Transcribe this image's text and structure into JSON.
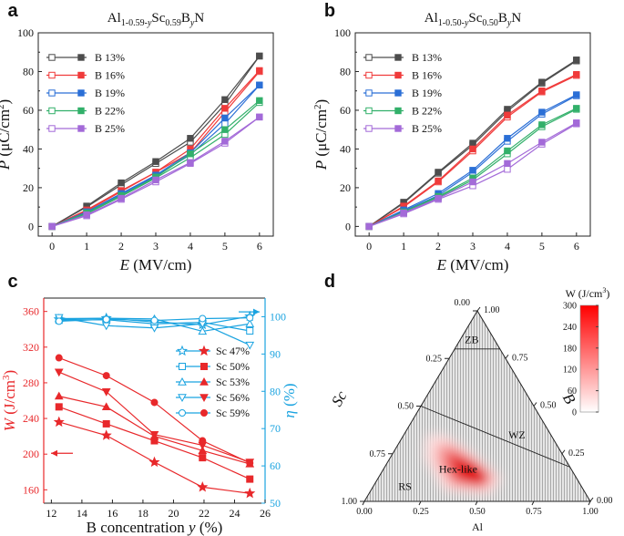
{
  "chart_data": [
    {
      "panel": "a",
      "type": "line",
      "title_main": "Al",
      "title_sub1": "1-0.59-",
      "title_sub1_var": "y",
      "title_mid": "Sc",
      "title_sub2": "0.59",
      "title_mid2": "B",
      "title_sub3_var": "y",
      "title_end": "N",
      "xlabel_var": "E",
      "xlabel_unit": " (MV/cm)",
      "ylabel_var": "P",
      "ylabel_unit": " (μC/cm",
      "ylabel_sup": "2",
      "ylabel_close": ")",
      "xlim": [
        -0.4,
        6.4
      ],
      "ylim": [
        -5,
        100
      ],
      "xticks": [
        "0",
        "1",
        "2",
        "3",
        "4",
        "5",
        "6"
      ],
      "yticks": [
        "0",
        "20",
        "40",
        "60",
        "80",
        "100"
      ],
      "x": [
        0,
        1,
        2,
        3,
        4,
        5,
        6
      ],
      "series": [
        {
          "name": "B 13%",
          "color": "#4d4d4d",
          "open": [
            0,
            10,
            21.5,
            32.5,
            43.5,
            63,
            88
          ],
          "filled": [
            0,
            10.5,
            22.5,
            33.5,
            45.5,
            65.5,
            88
          ]
        },
        {
          "name": "B 16%",
          "color": "#f03b3b",
          "open": [
            0,
            8,
            18,
            28,
            38,
            59,
            80
          ],
          "filled": [
            0,
            8.5,
            18.5,
            28,
            40,
            61,
            80.5
          ]
        },
        {
          "name": "B 19%",
          "color": "#2b6fd6",
          "open": [
            0,
            7.5,
            16.5,
            26,
            37,
            53,
            73
          ],
          "filled": [
            0,
            7.5,
            17,
            26.5,
            38,
            56,
            73
          ]
        },
        {
          "name": "B 22%",
          "color": "#32b06a",
          "open": [
            0,
            6.5,
            15.5,
            25,
            35.5,
            47.5,
            64
          ],
          "filled": [
            0,
            7,
            16,
            25.5,
            37.5,
            50,
            65
          ]
        },
        {
          "name": "B 25%",
          "color": "#a36ad8",
          "open": [
            0,
            5.5,
            14,
            23,
            32.5,
            43,
            56.5
          ],
          "filled": [
            0,
            6,
            14.5,
            24,
            33,
            44,
            56.5
          ]
        }
      ]
    },
    {
      "panel": "b",
      "type": "line",
      "title_main": "Al",
      "title_sub1": "1-0.50-",
      "title_sub1_var": "y",
      "title_mid": "Sc",
      "title_sub2": "0.50",
      "title_mid2": "B",
      "title_sub3_var": "y",
      "title_end": "N",
      "xlabel_var": "E",
      "xlabel_unit": " (MV/cm)",
      "ylabel_var": "P",
      "ylabel_unit": " (μC/cm",
      "ylabel_sup": "2",
      "ylabel_close": ")",
      "xlim": [
        -0.4,
        6.4
      ],
      "ylim": [
        -5,
        100
      ],
      "xticks": [
        "0",
        "1",
        "2",
        "3",
        "4",
        "5",
        "6"
      ],
      "yticks": [
        "0",
        "20",
        "40",
        "60",
        "80",
        "100"
      ],
      "x": [
        0,
        1,
        2,
        3,
        4,
        5,
        6
      ],
      "series": [
        {
          "name": "B 13%",
          "color": "#4d4d4d",
          "open": [
            0,
            12,
            27.5,
            42,
            59.5,
            74,
            85.5
          ],
          "filled": [
            0,
            12.5,
            28,
            43,
            60.5,
            74.5,
            86
          ]
        },
        {
          "name": "B 16%",
          "color": "#f03b3b",
          "open": [
            0,
            10,
            23,
            39,
            56.5,
            69.5,
            78
          ],
          "filled": [
            0,
            10.5,
            23.5,
            40,
            57.5,
            70,
            78.5
          ]
        },
        {
          "name": "B 19%",
          "color": "#2b6fd6",
          "open": [
            0,
            8,
            16,
            28,
            44,
            58,
            67.5
          ],
          "filled": [
            0,
            8.5,
            17,
            29,
            45.5,
            59,
            68
          ]
        },
        {
          "name": "B 22%",
          "color": "#32b06a",
          "open": [
            0,
            7,
            15,
            24,
            37.5,
            51.5,
            60.5
          ],
          "filled": [
            0,
            7.5,
            15.5,
            25,
            39,
            52.5,
            61
          ]
        },
        {
          "name": "B 25%",
          "color": "#a36ad8",
          "open": [
            0,
            6.5,
            14,
            21,
            29.5,
            42.5,
            53
          ],
          "filled": [
            0,
            7,
            14.5,
            23,
            32.5,
            43.5,
            53.5
          ]
        }
      ]
    },
    {
      "panel": "c",
      "type": "line",
      "xlabel": "B concentration y (%)",
      "xlabel_pre": "B concentration ",
      "xlabel_var": "y",
      "xlabel_post": " (%)",
      "ylabel_left_var": "W",
      "ylabel_left_unit": " (J/cm",
      "ylabel_left_sup": "3",
      "ylabel_left_close": ")",
      "ylabel_right_var": "η",
      "ylabel_right_unit": " (%)",
      "xlim": [
        11.5,
        26
      ],
      "ylim_left": [
        145,
        375
      ],
      "ylim_right": [
        50,
        105
      ],
      "xticks": [
        "12",
        "14",
        "16",
        "18",
        "20",
        "22",
        "24",
        "26"
      ],
      "yticks_left": [
        "160",
        "200",
        "240",
        "280",
        "320",
        "360"
      ],
      "yticks_right": [
        "50",
        "60",
        "70",
        "80",
        "90",
        "100"
      ],
      "x": [
        12.5,
        15.6,
        18.75,
        21.9,
        25
      ],
      "W_color": "#e8282b",
      "eta_color": "#1aa3e0",
      "series": [
        {
          "name": "Sc 47%",
          "marker": "star",
          "W": [
            236,
            221,
            191,
            163,
            156
          ],
          "eta": [
            99.3,
            99.6,
            98.6,
            97.9,
            100.1
          ]
        },
        {
          "name": "Sc 50%",
          "marker": "square",
          "W": [
            253,
            234,
            215,
            196,
            172
          ],
          "eta": [
            99.1,
            99.2,
            98.1,
            98.5,
            96.2
          ]
        },
        {
          "name": "Sc 53%",
          "marker": "triangle-up",
          "W": [
            265,
            253,
            220,
            204,
            189
          ],
          "eta": [
            99.5,
            99.6,
            99.4,
            96.1,
            98.1
          ]
        },
        {
          "name": "Sc 56%",
          "marker": "triangle-down",
          "W": [
            292,
            270,
            222,
            210,
            191
          ],
          "eta": [
            99.8,
            97.6,
            97.0,
            98.1,
            92.4
          ]
        },
        {
          "name": "Sc 59%",
          "marker": "circle",
          "W": [
            308,
            288,
            258,
            215,
            190
          ],
          "eta": [
            98.8,
            99.3,
            99.0,
            99.5,
            99.7
          ]
        }
      ]
    },
    {
      "panel": "d",
      "type": "heatmap",
      "axis_left_label": "Sc",
      "axis_right_label": "B",
      "axis_bottom_label": "Al",
      "ticks_left": [
        "0.00",
        "0.25",
        "0.50",
        "0.75",
        "1.00"
      ],
      "ticks_right": [
        "1.00",
        "0.75",
        "0.50",
        "0.25",
        "0.00"
      ],
      "ticks_bottom": [
        "0.00",
        "0.25",
        "0.50",
        "0.75",
        "1.00"
      ],
      "regions": [
        "ZB",
        "WZ",
        "Hex-like",
        "RS"
      ],
      "colorbar_title": "W (J/cm",
      "colorbar_sup": "3",
      "colorbar_close": ")",
      "colorbar_ticks": [
        "300",
        "240",
        "180",
        "120",
        "60",
        "0"
      ],
      "colorbar_range": [
        0,
        300
      ],
      "peak_composition": {
        "Al": 0.4,
        "Sc": 0.45,
        "B": 0.15
      },
      "peak_value": 300
    }
  ]
}
